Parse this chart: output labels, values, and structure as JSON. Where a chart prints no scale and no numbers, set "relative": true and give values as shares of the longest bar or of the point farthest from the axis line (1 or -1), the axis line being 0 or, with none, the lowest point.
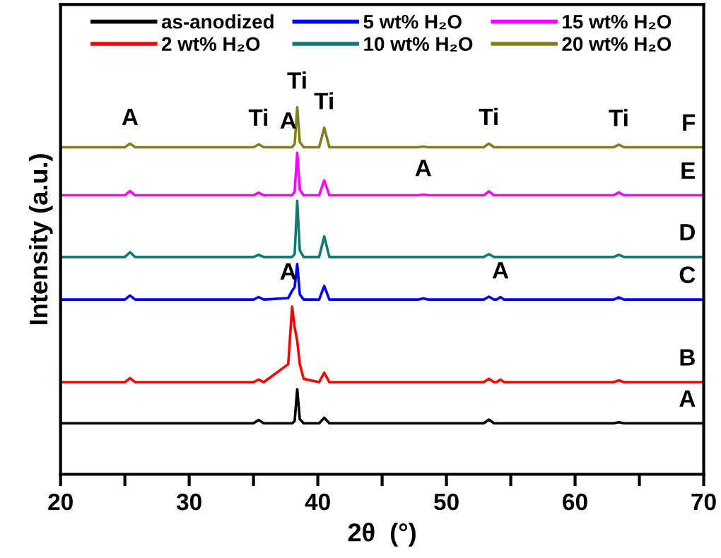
{
  "chart_data": {
    "type": "line",
    "relative": true,
    "xlabel": "2θ  (°)",
    "ylabel": "Intensity (a.u.)",
    "x": [
      20,
      25,
      25.4,
      25.8,
      35,
      35.4,
      35.8,
      37.7,
      38.0,
      38.2,
      38.4,
      38.6,
      38.9,
      40.1,
      40.5,
      40.9,
      47.8,
      48.2,
      48.6,
      52.9,
      53.3,
      53.7,
      53.9,
      54.2,
      54.5,
      63,
      63.4,
      63.8,
      70
    ],
    "xlim": [
      20,
      70
    ],
    "xticks": [
      20,
      {
        "value": 25,
        "label": null
      },
      30,
      {
        "value": 35,
        "label": null
      },
      40,
      {
        "value": 45,
        "label": null
      },
      50,
      {
        "value": 55,
        "label": null
      },
      60,
      {
        "value": 65,
        "label": null
      },
      70
    ],
    "legend": "top",
    "grid": false,
    "marker": "none",
    "line_style": "solid",
    "series": [
      {
        "name": "as-anodized",
        "color": "#000000",
        "values": [
          0.139,
          0.139,
          0.139,
          0.139,
          0.139,
          0.148,
          0.139,
          0.139,
          0.139,
          0.145,
          0.232,
          0.15,
          0.139,
          0.139,
          0.154,
          0.139,
          0.139,
          0.139,
          0.139,
          0.139,
          0.149,
          0.139,
          0.139,
          0.139,
          0.139,
          0.139,
          0.142,
          0.139,
          0.139
        ]
      },
      {
        "name": "2 wt% H₂O",
        "color": "#ff0000",
        "values": [
          0.251,
          0.251,
          0.262,
          0.251,
          0.251,
          0.258,
          0.251,
          0.3,
          0.457,
          0.4,
          0.363,
          0.3,
          0.26,
          0.251,
          0.277,
          0.251,
          0.251,
          0.251,
          0.251,
          0.251,
          0.26,
          0.251,
          0.251,
          0.258,
          0.251,
          0.251,
          0.256,
          0.251,
          0.251
        ]
      },
      {
        "name": "5 wt% H₂O",
        "color": "#0000ff",
        "values": [
          0.476,
          0.476,
          0.487,
          0.476,
          0.476,
          0.483,
          0.476,
          0.48,
          0.5,
          0.51,
          0.573,
          0.49,
          0.476,
          0.476,
          0.513,
          0.476,
          0.476,
          0.479,
          0.476,
          0.476,
          0.484,
          0.476,
          0.476,
          0.483,
          0.476,
          0.476,
          0.482,
          0.476,
          0.476
        ]
      },
      {
        "name": "10 wt% H₂O",
        "color": "#127a72",
        "values": [
          0.592,
          0.592,
          0.605,
          0.592,
          0.592,
          0.598,
          0.592,
          0.592,
          0.592,
          0.6,
          0.745,
          0.61,
          0.592,
          0.592,
          0.648,
          0.592,
          0.592,
          0.592,
          0.592,
          0.592,
          0.6,
          0.592,
          0.592,
          0.592,
          0.592,
          0.592,
          0.598,
          0.592,
          0.592
        ]
      },
      {
        "name": "15 wt% H₂O",
        "color": "#ff00ff",
        "values": [
          0.76,
          0.76,
          0.772,
          0.76,
          0.76,
          0.767,
          0.76,
          0.76,
          0.76,
          0.77,
          0.876,
          0.775,
          0.76,
          0.76,
          0.801,
          0.76,
          0.76,
          0.762,
          0.76,
          0.76,
          0.771,
          0.76,
          0.76,
          0.76,
          0.76,
          0.76,
          0.768,
          0.76,
          0.76
        ]
      },
      {
        "name": "20 wt% H₂O",
        "color": "#808020",
        "values": [
          0.891,
          0.891,
          0.901,
          0.891,
          0.891,
          0.899,
          0.891,
          0.891,
          0.891,
          0.9,
          1.0,
          0.905,
          0.891,
          0.891,
          0.944,
          0.891,
          0.891,
          0.893,
          0.891,
          0.891,
          0.901,
          0.891,
          0.891,
          0.891,
          0.891,
          0.891,
          0.898,
          0.891,
          0.891
        ]
      }
    ],
    "annotations": [
      {
        "text": "A",
        "x": 25.4,
        "y": 0.901
      },
      {
        "text": "Ti",
        "x": 35.4,
        "y": 0.899
      },
      {
        "text": "A",
        "x": 37.7,
        "y": 0.891
      },
      {
        "text": "Ti",
        "x": 38.4,
        "y": 1.0
      },
      {
        "text": "Ti",
        "x": 40.5,
        "y": 0.944
      },
      {
        "text": "Ti",
        "x": 53.3,
        "y": 0.901
      },
      {
        "text": "Ti",
        "x": 63.4,
        "y": 0.898
      },
      {
        "text": "A",
        "x": 48.2,
        "y": 0.762
      },
      {
        "text": "A",
        "x": 37.7,
        "y": 0.48
      },
      {
        "text": "A",
        "x": 54.2,
        "y": 0.483
      },
      {
        "text": "F",
        "x": 70,
        "y": 0.891
      },
      {
        "text": "E",
        "x": 70,
        "y": 0.76
      },
      {
        "text": "D",
        "x": 70,
        "y": 0.592
      },
      {
        "text": "C",
        "x": 70,
        "y": 0.476
      },
      {
        "text": "B",
        "x": 70,
        "y": 0.251
      },
      {
        "text": "A",
        "x": 70,
        "y": 0.139
      }
    ]
  }
}
